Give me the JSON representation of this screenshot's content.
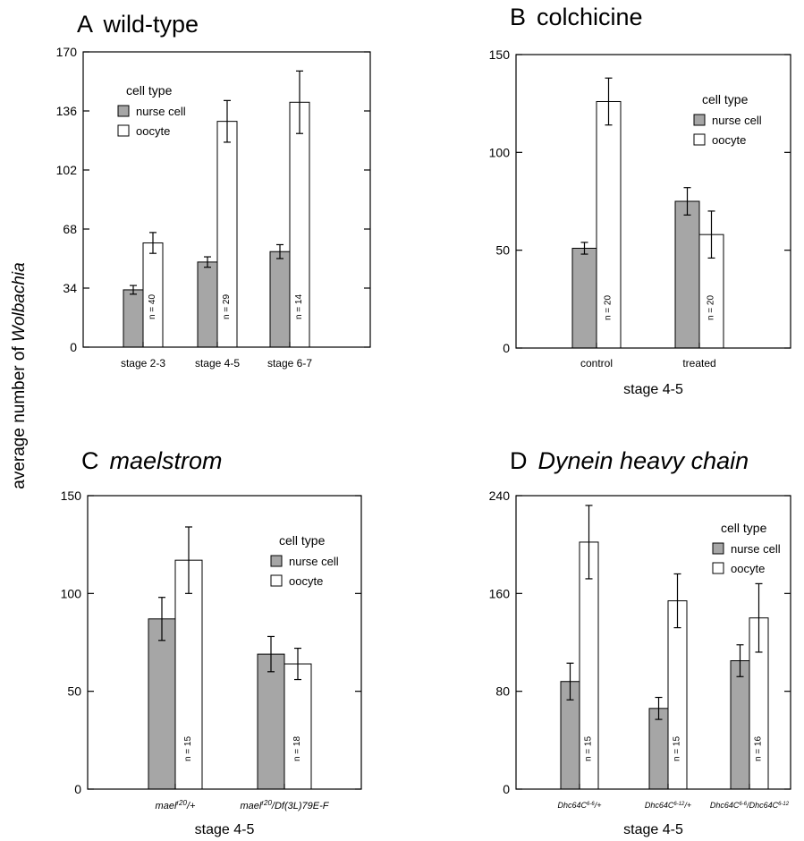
{
  "figure": {
    "shared_ylabel": "average number of ",
    "shared_ylabel_italic": "Wolbachia"
  },
  "chart_data": [
    {
      "type": "bar",
      "panel_letter": "A",
      "title": "wild-type",
      "title_italic": false,
      "xlabel": "",
      "ylabel": "average number of Wolbachia",
      "ylim": [
        0,
        170
      ],
      "yticks": [
        0,
        34,
        68,
        102,
        136,
        170
      ],
      "grid": false,
      "legend_title": "cell type",
      "legend_position": "top-left",
      "categories": [
        {
          "parts": [
            {
              "t": "stage 2-3"
            }
          ]
        },
        {
          "parts": [
            {
              "t": "stage 4-5"
            }
          ]
        },
        {
          "parts": [
            {
              "t": "stage 6-7"
            }
          ]
        }
      ],
      "series": [
        {
          "name": "nurse cell",
          "color": "#a6a6a6",
          "values": [
            33,
            49,
            55
          ],
          "errors": [
            2.5,
            3,
            4
          ]
        },
        {
          "name": "oocyte",
          "color": "#ffffff",
          "values": [
            60,
            130,
            141
          ],
          "errors": [
            6,
            12,
            18
          ]
        }
      ],
      "n_labels": [
        "n = 40",
        "n = 29",
        "n = 14"
      ]
    },
    {
      "type": "bar",
      "panel_letter": "B",
      "title": "colchicine",
      "title_italic": false,
      "xlabel": "stage 4-5",
      "ylabel": "average number of Wolbachia",
      "ylim": [
        0,
        150
      ],
      "yticks": [
        0,
        50,
        100,
        150
      ],
      "grid": false,
      "legend_title": "cell type",
      "legend_position": "top-right",
      "categories": [
        {
          "parts": [
            {
              "t": "control"
            }
          ]
        },
        {
          "parts": [
            {
              "t": "treated"
            }
          ]
        }
      ],
      "series": [
        {
          "name": "nurse cell",
          "color": "#a6a6a6",
          "values": [
            51,
            75
          ],
          "errors": [
            3,
            7
          ]
        },
        {
          "name": "oocyte",
          "color": "#ffffff",
          "values": [
            126,
            58
          ],
          "errors": [
            12,
            12
          ]
        }
      ],
      "n_labels": [
        "n = 20",
        "n = 20"
      ]
    },
    {
      "type": "bar",
      "panel_letter": "C",
      "title": "maelstrom",
      "title_italic": true,
      "xlabel": "stage 4-5",
      "ylabel": "average number of Wolbachia",
      "ylim": [
        0,
        150
      ],
      "yticks": [
        0,
        50,
        100,
        150
      ],
      "grid": false,
      "legend_title": "cell type",
      "legend_position": "top-right",
      "categories": [
        {
          "parts": [
            {
              "t": "mael",
              "i": true
            },
            {
              "t": "r20",
              "sup": true,
              "i": true
            },
            {
              "t": "/+",
              "i": true
            }
          ]
        },
        {
          "parts": [
            {
              "t": "mael",
              "i": true
            },
            {
              "t": "r20",
              "sup": true,
              "i": true
            },
            {
              "t": "/Df(3L)79E-F",
              "i": true
            }
          ]
        }
      ],
      "series": [
        {
          "name": "nurse cell",
          "color": "#a6a6a6",
          "values": [
            87,
            69
          ],
          "errors": [
            11,
            9
          ]
        },
        {
          "name": "oocyte",
          "color": "#ffffff",
          "values": [
            117,
            64
          ],
          "errors": [
            17,
            8
          ]
        }
      ],
      "n_labels": [
        "n = 15",
        "n = 18"
      ]
    },
    {
      "type": "bar",
      "panel_letter": "D",
      "title": "Dynein heavy chain",
      "title_italic": true,
      "xlabel": "stage 4-5",
      "ylabel": "average number of Wolbachia",
      "ylim": [
        0,
        240
      ],
      "yticks": [
        0,
        80,
        160,
        240
      ],
      "grid": false,
      "legend_title": "cell type",
      "legend_position": "top-right",
      "categories": [
        {
          "parts": [
            {
              "t": "Dhc64C",
              "i": true
            },
            {
              "t": "6-6",
              "sup": true,
              "i": true
            },
            {
              "t": "/+",
              "i": true
            }
          ]
        },
        {
          "parts": [
            {
              "t": "Dhc64C",
              "i": true
            },
            {
              "t": "6-12",
              "sup": true,
              "i": true
            },
            {
              "t": "/+",
              "i": true
            }
          ]
        },
        {
          "parts": [
            {
              "t": "Dhc64C",
              "i": true
            },
            {
              "t": "6-6",
              "sup": true,
              "i": true
            },
            {
              "t": "/Dhc64C",
              "i": true
            },
            {
              "t": "6-12",
              "sup": true,
              "i": true
            }
          ]
        }
      ],
      "series": [
        {
          "name": "nurse cell",
          "color": "#a6a6a6",
          "values": [
            88,
            66,
            105
          ],
          "errors": [
            15,
            9,
            13
          ]
        },
        {
          "name": "oocyte",
          "color": "#ffffff",
          "values": [
            202,
            154,
            140
          ],
          "errors": [
            30,
            22,
            28
          ]
        }
      ],
      "n_labels": [
        "n = 15",
        "n = 15",
        "n = 16"
      ]
    }
  ]
}
